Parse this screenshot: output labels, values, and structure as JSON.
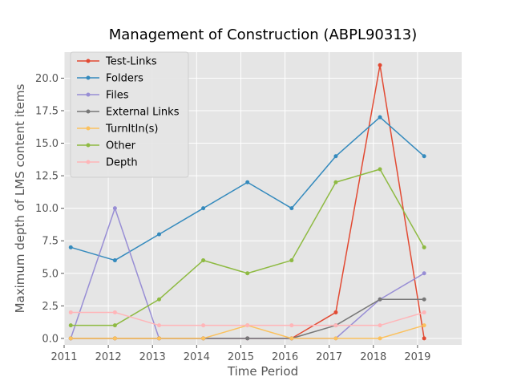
{
  "chart_data": {
    "type": "line",
    "title": "Management of Construction (ABPL90313)",
    "xlabel": "Time Period",
    "ylabel": "Maximum depth of LMS content items",
    "xlim": [
      2011.0,
      2020.0
    ],
    "ylim": [
      -0.5,
      22.0
    ],
    "xticks": [
      2011,
      2012,
      2013,
      2014,
      2015,
      2016,
      2017,
      2018,
      2019
    ],
    "yticks": [
      0.0,
      2.5,
      5.0,
      7.5,
      10.0,
      12.5,
      15.0,
      17.5,
      20.0
    ],
    "ytick_labels": [
      "0.0",
      "2.5",
      "5.0",
      "7.5",
      "10.0",
      "12.5",
      "15.0",
      "17.5",
      "20.0"
    ],
    "grid": true,
    "legend_position": "upper-left",
    "x": [
      2011.15,
      2012.15,
      2013.15,
      2014.15,
      2015.15,
      2016.15,
      2017.15,
      2018.15,
      2019.15
    ],
    "series": [
      {
        "name": "Test-Links",
        "color": "#e24a33",
        "values": [
          0,
          0,
          0,
          0,
          0,
          0,
          2,
          21,
          0
        ]
      },
      {
        "name": "Folders",
        "color": "#348abd",
        "values": [
          7,
          6,
          8,
          10,
          12,
          10,
          14,
          17,
          14
        ]
      },
      {
        "name": "Files",
        "color": "#988ed5",
        "values": [
          0,
          10,
          0,
          0,
          0,
          0,
          0,
          3,
          5
        ]
      },
      {
        "name": "External Links",
        "color": "#777777",
        "values": [
          0,
          0,
          0,
          0,
          0,
          0,
          1,
          3,
          3
        ]
      },
      {
        "name": "TurnItIn(s)",
        "color": "#fbc15e",
        "values": [
          0,
          0,
          0,
          0,
          1,
          0,
          0,
          0,
          1
        ]
      },
      {
        "name": "Other",
        "color": "#8eba42",
        "values": [
          1,
          1,
          3,
          6,
          5,
          6,
          12,
          13,
          7
        ]
      },
      {
        "name": "Depth",
        "color": "#ffb5b8",
        "values": [
          2,
          2,
          1,
          1,
          1,
          1,
          1,
          1,
          2
        ]
      }
    ],
    "background_color": "#e5e5e5",
    "grid_color": "#ffffff"
  }
}
